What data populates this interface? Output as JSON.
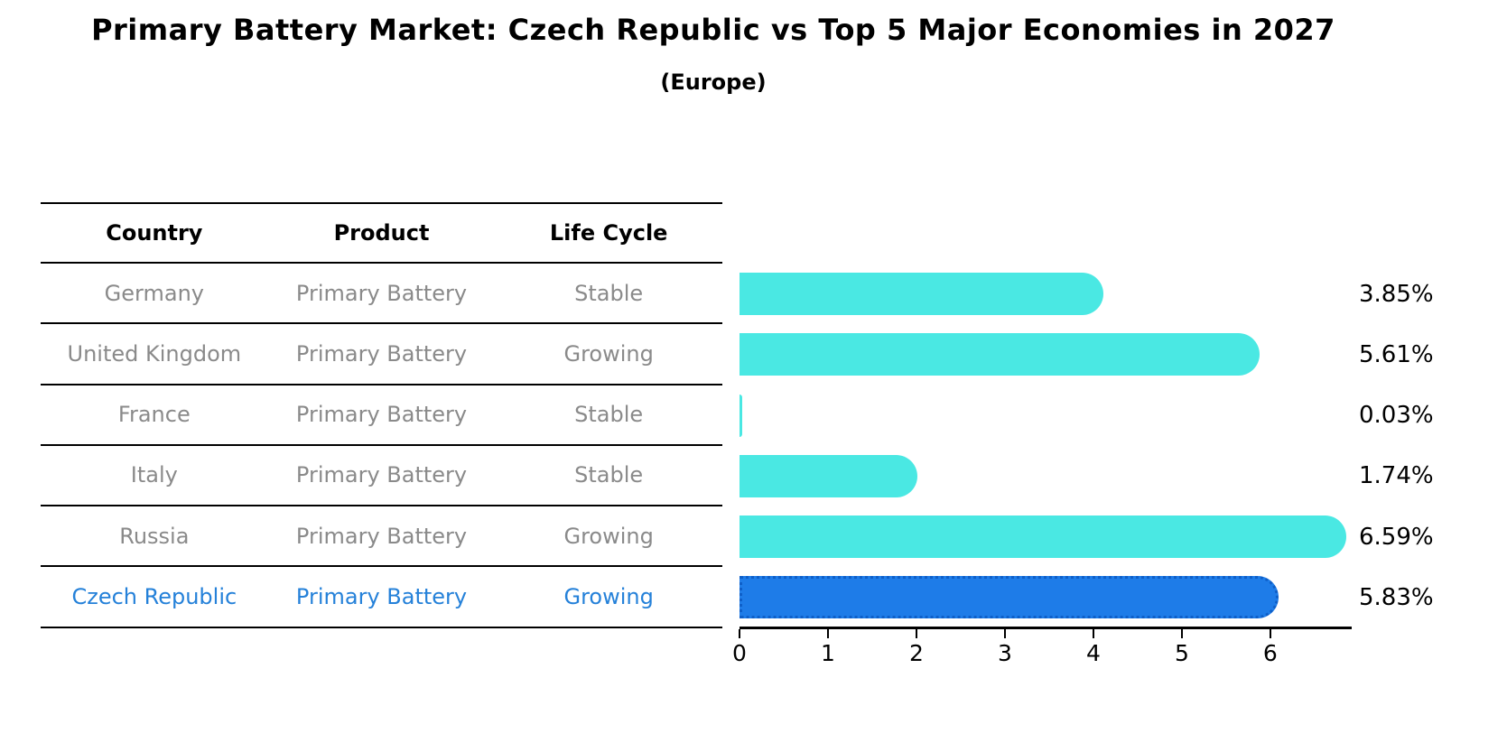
{
  "title": "Primary Battery Market: Czech Republic vs Top 5 Major Economies in 2027",
  "subtitle": "(Europe)",
  "table": {
    "headers": [
      "Country",
      "Product",
      "Life Cycle"
    ],
    "rows": [
      {
        "cells": [
          "Germany",
          "Primary Battery",
          "Stable"
        ],
        "highlight": false
      },
      {
        "cells": [
          "United Kingdom",
          "Primary Battery",
          "Growing"
        ],
        "highlight": false
      },
      {
        "cells": [
          "France",
          "Primary Battery",
          "Stable"
        ],
        "highlight": false
      },
      {
        "cells": [
          "Italy",
          "Primary Battery",
          "Stable"
        ],
        "highlight": false
      },
      {
        "cells": [
          "Russia",
          "Primary Battery",
          "Growing"
        ],
        "highlight": false
      },
      {
        "cells": [
          "Czech Republic",
          "Primary Battery",
          "Growing"
        ],
        "highlight": true
      }
    ]
  },
  "chart_data": {
    "type": "bar",
    "orientation": "horizontal",
    "title": "Primary Battery Market: Czech Republic vs Top 5 Major Economies in 2027 (Europe)",
    "categories": [
      "Germany",
      "United Kingdom",
      "France",
      "Italy",
      "Russia",
      "Czech Republic"
    ],
    "values": [
      3.85,
      5.61,
      0.03,
      1.74,
      6.59,
      5.83
    ],
    "value_labels": [
      "3.85%",
      "5.61%",
      "0.03%",
      "1.74%",
      "6.59%",
      "5.83%"
    ],
    "x_ticks": [
      "0",
      "1",
      "2",
      "3",
      "4",
      "5",
      "6"
    ],
    "xlim": [
      0,
      6.9
    ],
    "grid": false,
    "legend": false,
    "highlight_index": 5,
    "colors": {
      "bar": "#4ae8e3",
      "highlight_bar": "#1e7ce8",
      "highlight_border": "#0e5fc8",
      "highlight_text": "#2581d9",
      "row_text": "#8a8a8a",
      "header_text": "#000000",
      "axis": "#000000"
    }
  }
}
